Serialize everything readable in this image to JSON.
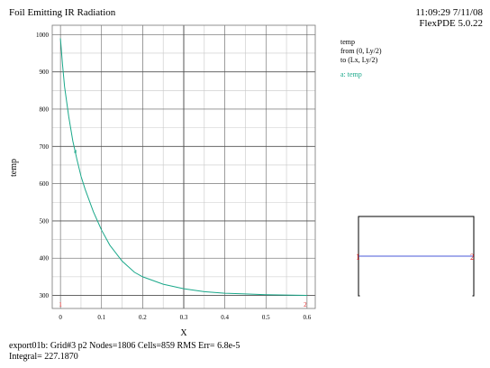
{
  "header": {
    "title": "Foil Emitting IR Radiation",
    "time": "11:09:29 7/11/08",
    "version": "FlexPDE 5.0.22"
  },
  "legend": {
    "line1": "temp",
    "line2": "from (0, Ly/2)",
    "line3": "to (Lx, Ly/2)",
    "series_label": "a: temp"
  },
  "footer": {
    "line1": "export01b:  Grid#3  p2  Nodes=1806 Cells=859 RMS Err= 6.8e-5",
    "line2": "Integral=  227.1870"
  },
  "colors": {
    "curve": "#1aa88a",
    "grid": "#c8c8c8",
    "grid_major": "#555555",
    "marker": "#dd2222",
    "inset_line": "#4a5ad8"
  },
  "chart_data": {
    "type": "line",
    "title": "Foil Emitting IR Radiation",
    "xlabel": "X",
    "ylabel": "temp",
    "xlim": [
      -0.02,
      0.62
    ],
    "ylim": [
      265,
      1025
    ],
    "x_ticks": [
      "0",
      "0.1",
      "0.2",
      "0.3",
      "0.4",
      "0.5",
      "0.6"
    ],
    "y_ticks": [
      "300",
      "400",
      "500",
      "600",
      "700",
      "800",
      "900",
      "1000"
    ],
    "end_markers": [
      {
        "label": "1",
        "x": 0.0
      },
      {
        "label": "2",
        "x": 0.6
      }
    ],
    "series": [
      {
        "name": "a: temp",
        "marker_label": "a",
        "marker_x": 0.035,
        "x": [
          0.0,
          0.005,
          0.01,
          0.02,
          0.03,
          0.04,
          0.05,
          0.06,
          0.08,
          0.1,
          0.12,
          0.15,
          0.18,
          0.2,
          0.25,
          0.3,
          0.35,
          0.4,
          0.45,
          0.5,
          0.55,
          0.6
        ],
        "y": [
          990,
          920,
          860,
          780,
          715,
          665,
          620,
          585,
          525,
          475,
          435,
          392,
          362,
          350,
          330,
          318,
          310,
          306,
          304,
          302,
          301,
          300
        ]
      }
    ]
  }
}
